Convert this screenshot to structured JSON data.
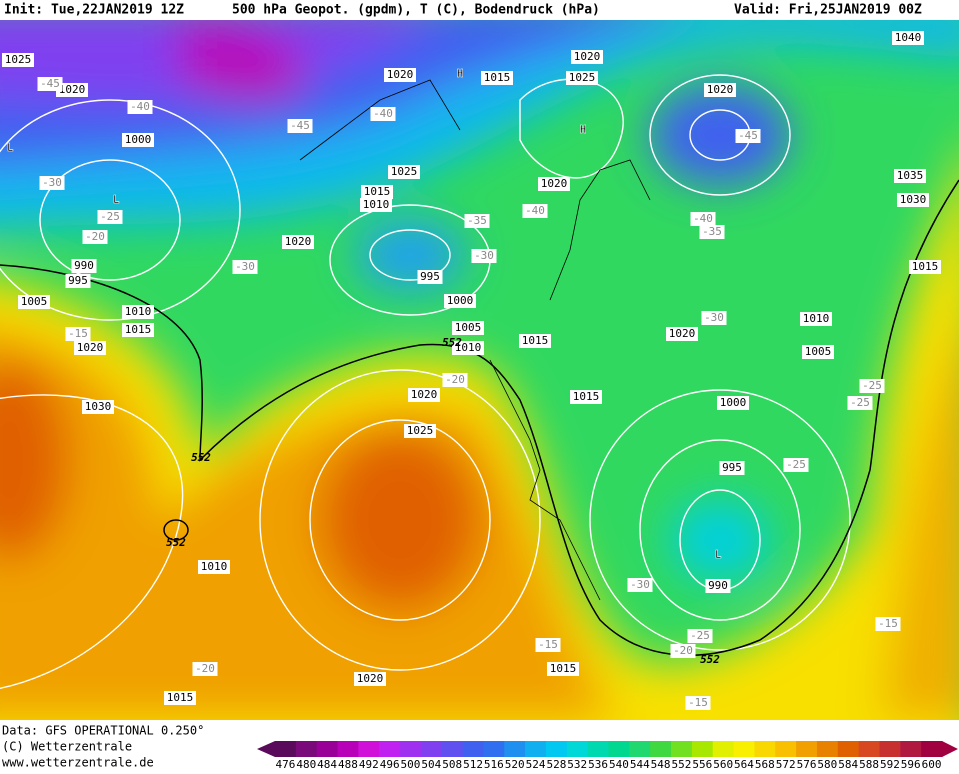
{
  "header": {
    "init": "Init: Tue,22JAN2019 12Z",
    "title": "500 hPa Geopot. (gpdm), T (C), Bodendruck (hPa)",
    "valid": "Valid: Fri,25JAN2019 00Z"
  },
  "map": {
    "pressure_labels": [
      "1025",
      "1020",
      "1000",
      "1020",
      "1015",
      "1020",
      "1025",
      "1020",
      "1040",
      "1025",
      "1015",
      "1010",
      "1020",
      "1035",
      "1030",
      "1020",
      "990",
      "995",
      "995",
      "1000",
      "1005",
      "1010",
      "1015",
      "1020",
      "1005",
      "1010",
      "1015",
      "1020",
      "1010",
      "1005",
      "1015",
      "1030",
      "1020",
      "1015",
      "1000",
      "1025",
      "995",
      "1010",
      "990",
      "1020",
      "1015",
      "1015"
    ],
    "temperature_labels": [
      "-45",
      "-40",
      "-45",
      "-40",
      "-45",
      "-30",
      "-25",
      "-20",
      "-35",
      "-40",
      "-40",
      "-35",
      "-30",
      "-30",
      "-30",
      "-15",
      "-20",
      "-25",
      "-25",
      "-25",
      "-30",
      "-15",
      "-25",
      "-20",
      "-20",
      "-15",
      "-15"
    ],
    "geopotential_labels": [
      "552",
      "552",
      "552",
      "552"
    ],
    "centers": [
      "H",
      "H",
      "L",
      "L",
      "L"
    ]
  },
  "footer": {
    "data": "Data: GFS OPERATIONAL 0.250°",
    "copyright": "(C) Wetterzentrale",
    "url": "www.wetterzentrale.de"
  },
  "colorbar": {
    "ticks": [
      476,
      480,
      484,
      488,
      492,
      496,
      500,
      504,
      508,
      512,
      516,
      520,
      524,
      528,
      532,
      536,
      540,
      544,
      548,
      552,
      556,
      560,
      564,
      568,
      572,
      576,
      580,
      584,
      588,
      592,
      596,
      600
    ],
    "colors": [
      "#5a0a5a",
      "#7a0a7a",
      "#980098",
      "#b800b8",
      "#d010d8",
      "#c020f0",
      "#a030f0",
      "#8040f0",
      "#6050f0",
      "#4060f0",
      "#3070f0",
      "#2090f0",
      "#10b0f0",
      "#00c8f0",
      "#00d8d8",
      "#00d8b0",
      "#00d890",
      "#20d870",
      "#40d840",
      "#70e020",
      "#a8e800",
      "#e0f000",
      "#f8f000",
      "#f8d800",
      "#f8c000",
      "#f0a000",
      "#e88000",
      "#e06000",
      "#d84820",
      "#c83030",
      "#b01840",
      "#a00040"
    ]
  }
}
